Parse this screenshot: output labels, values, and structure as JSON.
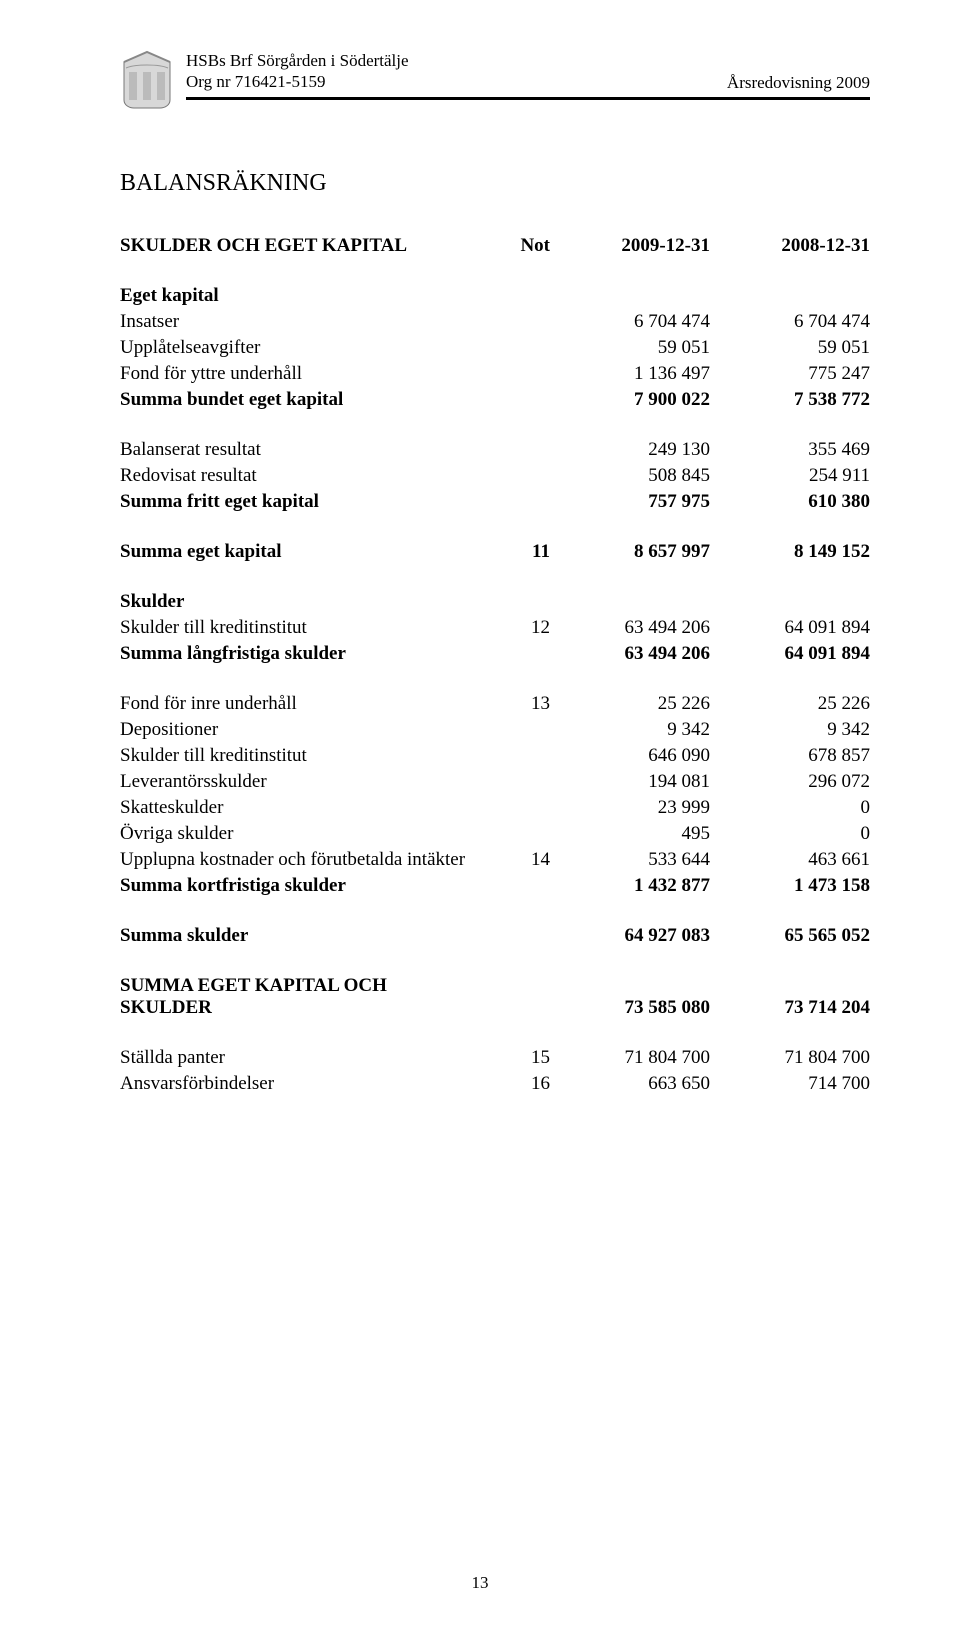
{
  "header": {
    "org_name": "HSBs Brf Sörgården i Södertälje",
    "org_nr": "Org nr 716421-5159",
    "year_label": "Årsredovisning 2009"
  },
  "title": "BALANSRÄKNING",
  "columns": {
    "heading_label": "SKULDER OCH EGET KAPITAL",
    "note_label": "Not",
    "col1_label": "2009-12-31",
    "col2_label": "2008-12-31"
  },
  "sections": [
    {
      "type": "section",
      "label": "Eget kapital"
    },
    {
      "type": "row",
      "label": "Insatser",
      "note": "",
      "c1": "6 704 474",
      "c2": "6 704 474"
    },
    {
      "type": "row",
      "label": "Upplåtelseavgifter",
      "note": "",
      "c1": "59 051",
      "c2": "59 051"
    },
    {
      "type": "row",
      "label": "Fond för yttre underhåll",
      "note": "",
      "c1": "1 136 497",
      "c2": "775 247"
    },
    {
      "type": "bold",
      "label": "Summa bundet eget kapital",
      "note": "",
      "c1": "7 900 022",
      "c2": "7 538 772"
    },
    {
      "type": "spacer"
    },
    {
      "type": "row",
      "label": "Balanserat resultat",
      "note": "",
      "c1": "249 130",
      "c2": "355 469"
    },
    {
      "type": "row",
      "label": "Redovisat resultat",
      "note": "",
      "c1": "508 845",
      "c2": "254 911"
    },
    {
      "type": "bold",
      "label": "Summa fritt eget kapital",
      "note": "",
      "c1": "757 975",
      "c2": "610 380"
    },
    {
      "type": "spacer"
    },
    {
      "type": "bold",
      "label": "Summa eget kapital",
      "note": "11",
      "c1": "8 657 997",
      "c2": "8 149 152"
    },
    {
      "type": "spacer"
    },
    {
      "type": "section",
      "label": "Skulder"
    },
    {
      "type": "row",
      "label": "Skulder till kreditinstitut",
      "note": "12",
      "c1": "63 494 206",
      "c2": "64 091 894"
    },
    {
      "type": "bold",
      "label": "Summa långfristiga skulder",
      "note": "",
      "c1": "63 494 206",
      "c2": "64 091 894"
    },
    {
      "type": "spacer"
    },
    {
      "type": "row",
      "label": "Fond för inre underhåll",
      "note": "13",
      "c1": "25 226",
      "c2": "25 226"
    },
    {
      "type": "row",
      "label": "Depositioner",
      "note": "",
      "c1": "9 342",
      "c2": "9 342"
    },
    {
      "type": "row",
      "label": "Skulder till kreditinstitut",
      "note": "",
      "c1": "646 090",
      "c2": "678 857"
    },
    {
      "type": "row",
      "label": "Leverantörsskulder",
      "note": "",
      "c1": "194 081",
      "c2": "296 072"
    },
    {
      "type": "row",
      "label": "Skatteskulder",
      "note": "",
      "c1": "23 999",
      "c2": "0"
    },
    {
      "type": "row",
      "label": "Övriga skulder",
      "note": "",
      "c1": "495",
      "c2": "0"
    },
    {
      "type": "row",
      "label": "Upplupna kostnader och förutbetalda intäkter",
      "note": "14",
      "c1": "533 644",
      "c2": "463 661"
    },
    {
      "type": "bold",
      "label": "Summa kortfristiga skulder",
      "note": "",
      "c1": "1 432 877",
      "c2": "1 473 158"
    },
    {
      "type": "spacer"
    },
    {
      "type": "bold",
      "label": "Summa skulder",
      "note": "",
      "c1": "64 927 083",
      "c2": "65 565 052"
    },
    {
      "type": "spacer"
    },
    {
      "type": "bold",
      "label": "SUMMA EGET KAPITAL OCH SKULDER",
      "note": "",
      "c1": "73 585 080",
      "c2": "73 714 204"
    },
    {
      "type": "spacer"
    },
    {
      "type": "row",
      "label": "Ställda panter",
      "note": "15",
      "c1": "71 804 700",
      "c2": "71 804 700"
    },
    {
      "type": "row",
      "label": "Ansvarsförbindelser",
      "note": "16",
      "c1": "663 650",
      "c2": "714 700"
    }
  ],
  "page_number": "13"
}
